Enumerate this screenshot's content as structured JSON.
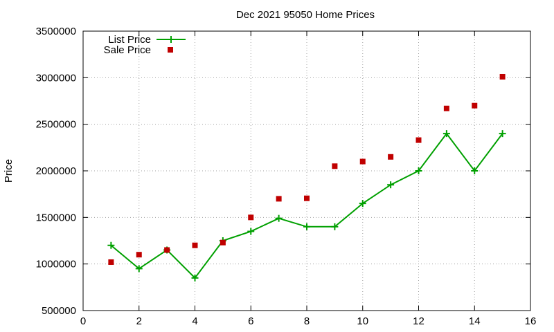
{
  "chart_data": {
    "type": "line",
    "title": "Dec 2021 95050 Home Prices",
    "xlabel": "",
    "ylabel": "Price",
    "xlim": [
      0,
      16
    ],
    "ylim": [
      500000,
      3500000
    ],
    "xticks": [
      0,
      2,
      4,
      6,
      8,
      10,
      12,
      14,
      16
    ],
    "yticks": [
      500000,
      1000000,
      1500000,
      2000000,
      2500000,
      3000000,
      3500000
    ],
    "xtick_labels": [
      "0",
      "2",
      "4",
      "6",
      "8",
      "10",
      "12",
      "14",
      "16"
    ],
    "ytick_labels": [
      "500000",
      "1000000",
      "1500000",
      "2000000",
      "2500000",
      "3000000",
      "3500000"
    ],
    "grid": true,
    "legend_position": "top-left",
    "series": [
      {
        "name": "List Price",
        "style": "line-with-plus-markers",
        "color": "#00a000",
        "x": [
          1,
          2,
          3,
          4,
          5,
          6,
          7,
          8,
          9,
          10,
          11,
          12,
          13,
          14,
          15
        ],
        "y": [
          1200000,
          950000,
          1150000,
          850000,
          1250000,
          1350000,
          1490000,
          1400000,
          1400000,
          1650000,
          1850000,
          2000000,
          2400000,
          2000000,
          2400000
        ]
      },
      {
        "name": "Sale Price",
        "style": "square-markers",
        "color": "#c00000",
        "x": [
          1,
          2,
          3,
          4,
          5,
          6,
          7,
          8,
          9,
          10,
          11,
          12,
          13,
          14,
          15
        ],
        "y": [
          1020000,
          1100000,
          1150000,
          1200000,
          1230000,
          1500000,
          1700000,
          1705000,
          2050000,
          2100000,
          2150000,
          2330000,
          2670000,
          2700000,
          3010000
        ]
      }
    ]
  }
}
